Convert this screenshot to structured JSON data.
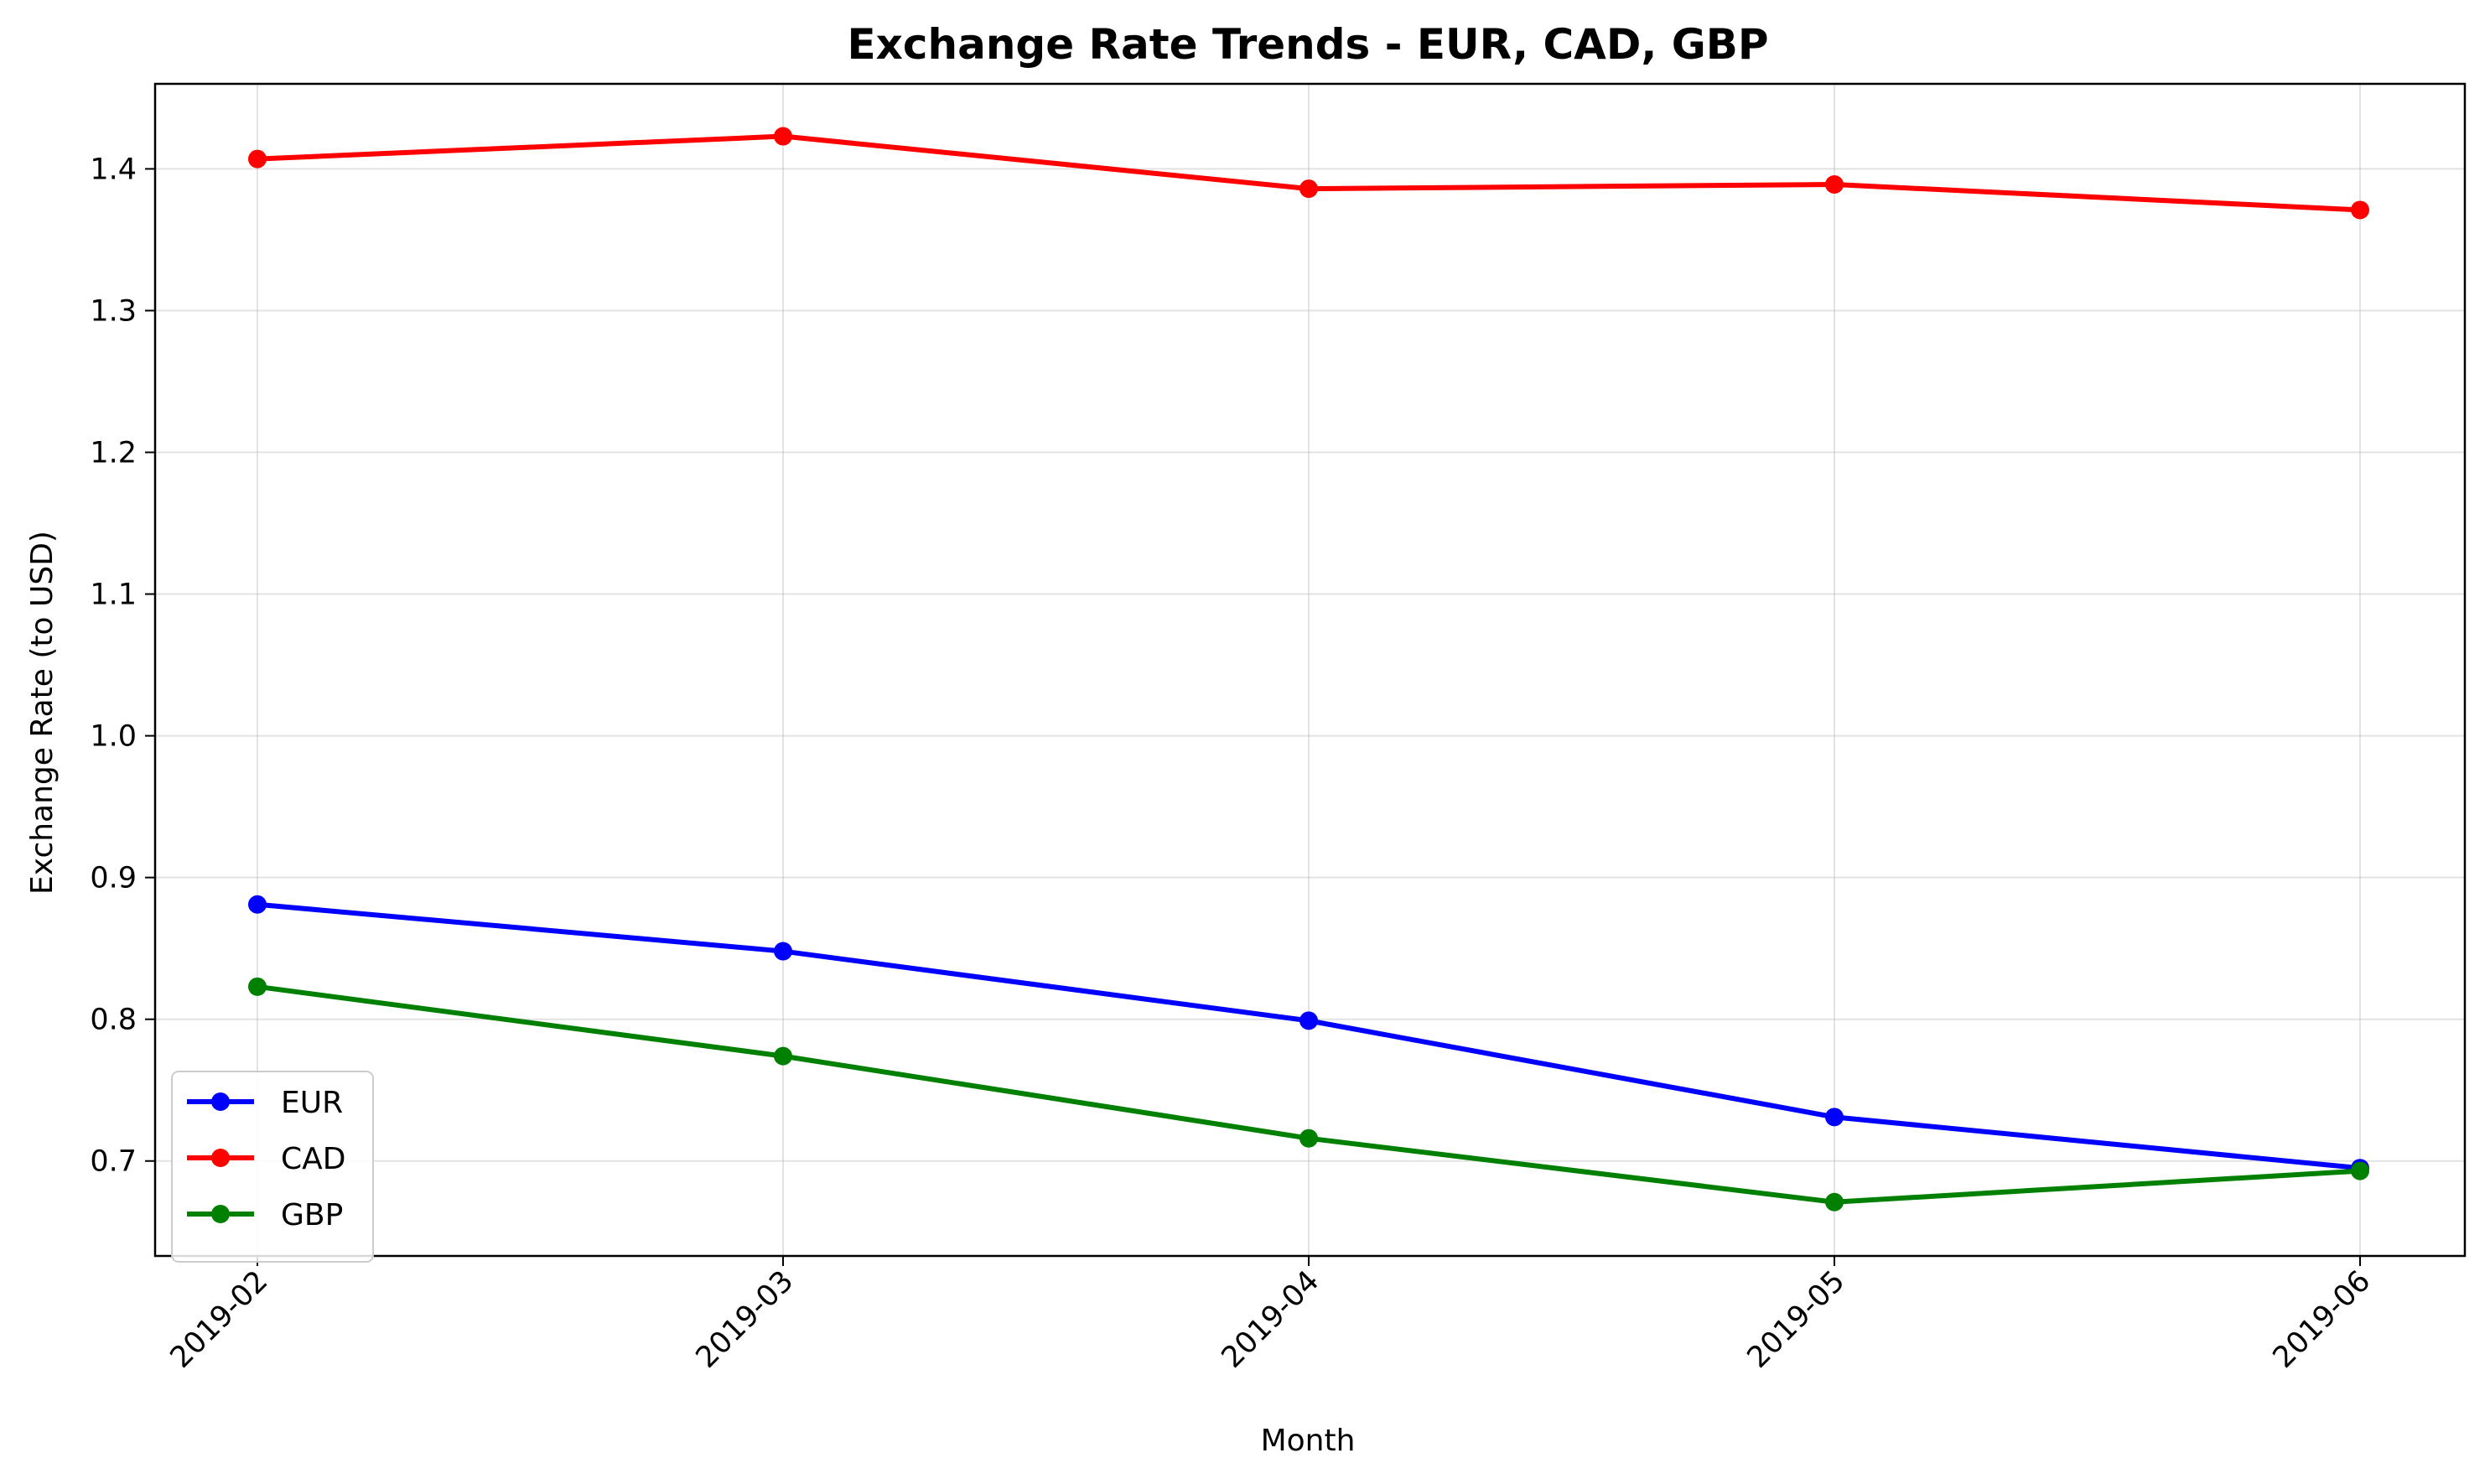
{
  "chart_data": {
    "type": "line",
    "title": "Exchange Rate Trends - EUR, CAD, GBP",
    "xlabel": "Month",
    "ylabel": "Exchange Rate (to USD)",
    "categories": [
      "2019-02",
      "2019-03",
      "2019-04",
      "2019-05",
      "2019-06"
    ],
    "yticks": [
      "0.7",
      "0.8",
      "0.9",
      "1.0",
      "1.1",
      "1.2",
      "1.3",
      "1.4"
    ],
    "ylim": [
      0.633,
      1.46
    ],
    "grid": true,
    "legend_position": "lower-left",
    "series": [
      {
        "name": "EUR",
        "color": "#0000ff",
        "values": [
          0.881,
          0.848,
          0.799,
          0.731,
          0.695
        ]
      },
      {
        "name": "CAD",
        "color": "#ff0000",
        "values": [
          1.407,
          1.423,
          1.386,
          1.389,
          1.371
        ]
      },
      {
        "name": "GBP",
        "color": "#008000",
        "values": [
          0.823,
          0.774,
          0.716,
          0.671,
          0.693
        ]
      }
    ]
  }
}
